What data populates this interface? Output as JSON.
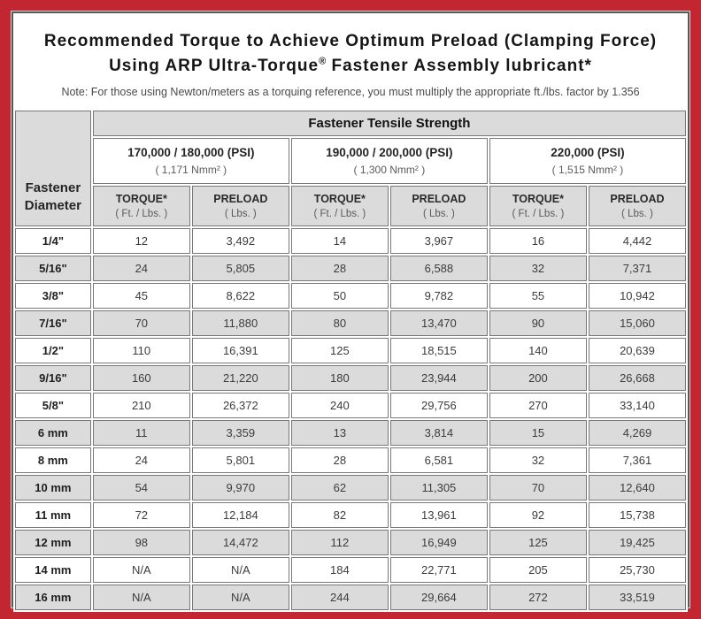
{
  "header": {
    "title_line1": "Recommended Torque to Achieve Optimum Preload (Clamping Force)",
    "title_line2_pre": "Using ARP Ultra-Torque",
    "registered_mark": "®",
    "title_line2_post": " Fastener Assembly lubricant*",
    "note": "Note: For those using Newton/meters as a torquing reference, you must multiply the appropriate ft./lbs. factor by 1.356"
  },
  "table": {
    "tensile_header": "Fastener Tensile Strength",
    "corner_line1": "Fastener",
    "corner_line2": "Diameter",
    "groups": [
      {
        "psi": "170,000 / 180,000 (PSI)",
        "nmm": "( 1,171 Nmm² )"
      },
      {
        "psi": "190,000 / 200,000 (PSI)",
        "nmm": "( 1,300 Nmm² )"
      },
      {
        "psi": "220,000 (PSI)",
        "nmm": "( 1,515 Nmm² )"
      }
    ],
    "col_headers": {
      "torque_label": "TORQUE*",
      "torque_sub": "( Ft. / Lbs. )",
      "preload_label": "PRELOAD",
      "preload_sub": "( Lbs. )"
    },
    "rows": [
      {
        "diameter": "1/4\"",
        "values": [
          "12",
          "3,492",
          "14",
          "3,967",
          "16",
          "4,442"
        ]
      },
      {
        "diameter": "5/16\"",
        "values": [
          "24",
          "5,805",
          "28",
          "6,588",
          "32",
          "7,371"
        ]
      },
      {
        "diameter": "3/8\"",
        "values": [
          "45",
          "8,622",
          "50",
          "9,782",
          "55",
          "10,942"
        ]
      },
      {
        "diameter": "7/16\"",
        "values": [
          "70",
          "11,880",
          "80",
          "13,470",
          "90",
          "15,060"
        ]
      },
      {
        "diameter": "1/2\"",
        "values": [
          "110",
          "16,391",
          "125",
          "18,515",
          "140",
          "20,639"
        ]
      },
      {
        "diameter": "9/16\"",
        "values": [
          "160",
          "21,220",
          "180",
          "23,944",
          "200",
          "26,668"
        ]
      },
      {
        "diameter": "5/8\"",
        "values": [
          "210",
          "26,372",
          "240",
          "29,756",
          "270",
          "33,140"
        ]
      },
      {
        "diameter": "6 mm",
        "values": [
          "11",
          "3,359",
          "13",
          "3,814",
          "15",
          "4,269"
        ]
      },
      {
        "diameter": "8 mm",
        "values": [
          "24",
          "5,801",
          "28",
          "6,581",
          "32",
          "7,361"
        ]
      },
      {
        "diameter": "10 mm",
        "values": [
          "54",
          "9,970",
          "62",
          "11,305",
          "70",
          "12,640"
        ]
      },
      {
        "diameter": "11 mm",
        "values": [
          "72",
          "12,184",
          "82",
          "13,961",
          "92",
          "15,738"
        ]
      },
      {
        "diameter": "12 mm",
        "values": [
          "98",
          "14,472",
          "112",
          "16,949",
          "125",
          "19,425"
        ]
      },
      {
        "diameter": "14 mm",
        "values": [
          "N/A",
          "N/A",
          "184",
          "22,771",
          "205",
          "25,730"
        ]
      },
      {
        "diameter": "16 mm",
        "values": [
          "N/A",
          "N/A",
          "244",
          "29,664",
          "272",
          "33,519"
        ]
      }
    ]
  },
  "colors": {
    "frame_red": "#C22631",
    "cell_gray": "#DBDBDB",
    "border_dark": "#787878"
  }
}
